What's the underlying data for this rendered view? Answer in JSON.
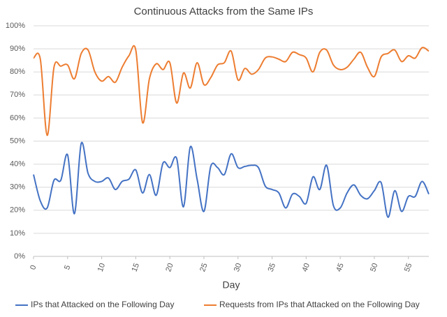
{
  "chart_data": {
    "type": "line",
    "title": "Continuous Attacks from the Same IPs",
    "xlabel": "Day",
    "x": [
      0,
      1,
      2,
      3,
      4,
      5,
      6,
      7,
      8,
      9,
      10,
      11,
      12,
      13,
      14,
      15,
      16,
      17,
      18,
      19,
      20,
      21,
      22,
      23,
      24,
      25,
      26,
      27,
      28,
      29,
      30,
      31,
      32,
      33,
      34,
      35,
      36,
      37,
      38,
      39,
      40,
      41,
      42,
      43,
      44,
      45,
      46,
      47,
      48,
      49,
      50,
      51,
      52,
      53,
      54,
      55,
      56,
      57,
      58
    ],
    "series": [
      {
        "name": "IPs that Attacked on the Following Day",
        "color": "#4472c4",
        "values": [
          35.5,
          24,
          21,
          33,
          33,
          44,
          18.5,
          49,
          36,
          32.5,
          32.5,
          34,
          29,
          32.5,
          33.5,
          37.5,
          27.5,
          35.5,
          26.5,
          40.5,
          38.5,
          42.5,
          21.5,
          47.5,
          33.5,
          19.5,
          39,
          38.5,
          35.5,
          44.5,
          38.5,
          39,
          39.5,
          38.5,
          30.5,
          29,
          27.5,
          21,
          27,
          26,
          23,
          34.5,
          29,
          39.5,
          22,
          21,
          27.5,
          31,
          26.5,
          25,
          28.5,
          32,
          17,
          28.5,
          19.5,
          26,
          26,
          32.5,
          27
        ]
      },
      {
        "name": "Requests from IPs that Attacked on the Following Day",
        "color": "#ed7d31",
        "values": [
          86,
          85.5,
          52.5,
          82,
          82.5,
          83,
          77,
          88,
          89.5,
          80,
          76,
          78,
          75.5,
          82,
          87,
          89.5,
          58,
          77,
          83.5,
          81,
          84,
          66.5,
          79.5,
          73,
          84,
          74.5,
          77.5,
          83,
          84,
          89,
          76.5,
          81.5,
          79,
          81,
          86,
          86.5,
          85.5,
          84.5,
          88.5,
          87.5,
          86,
          80,
          88.5,
          89.5,
          83,
          81,
          82,
          85.5,
          88.5,
          82,
          78,
          86.5,
          88,
          89.5,
          84.5,
          87,
          86,
          90.5,
          89
        ]
      }
    ],
    "xlim": [
      0,
      58
    ],
    "xticks": [
      0,
      5,
      10,
      15,
      20,
      25,
      30,
      35,
      40,
      45,
      50,
      55
    ],
    "ylim": [
      0,
      100
    ],
    "yticks": [
      {
        "value": 0,
        "label": "0%"
      },
      {
        "value": 10,
        "label": "10%"
      },
      {
        "value": 20,
        "label": "20%"
      },
      {
        "value": 30,
        "label": "30%"
      },
      {
        "value": 40,
        "label": "40%"
      },
      {
        "value": 50,
        "label": "50%"
      },
      {
        "value": 60,
        "label": "60%"
      },
      {
        "value": 70,
        "label": "70%"
      },
      {
        "value": 80,
        "label": "80%"
      },
      {
        "value": 90,
        "label": "90%"
      },
      {
        "value": 100,
        "label": "100%"
      }
    ],
    "grid": true,
    "legend": "bottom"
  }
}
